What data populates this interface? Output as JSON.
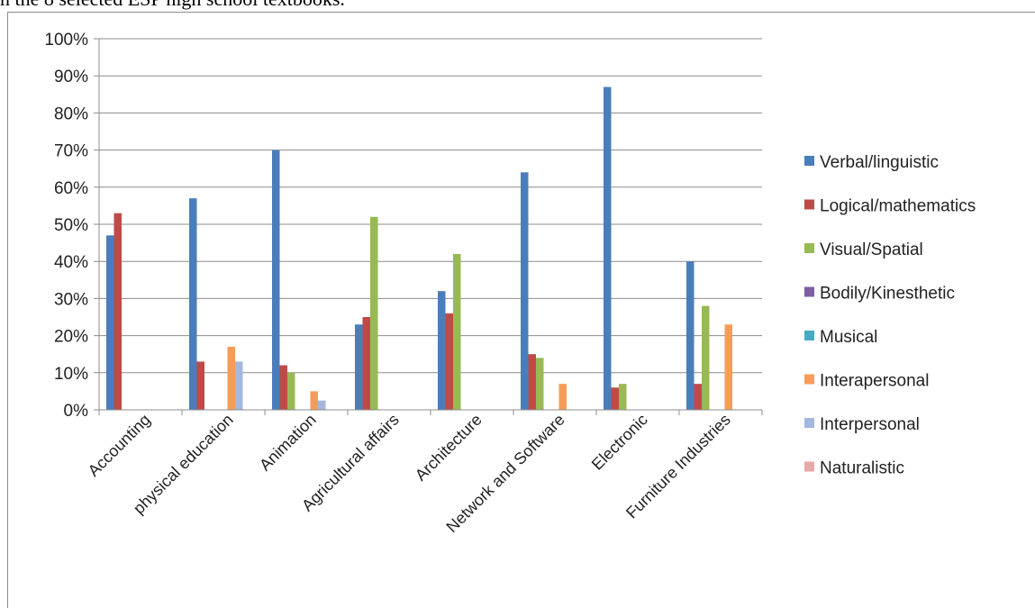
{
  "caption": "n the 8 selected ESP high school textbooks.",
  "chart_data": {
    "type": "bar",
    "categories": [
      "Accounting",
      "physical education",
      "Animation",
      "Agricultural affairs",
      "Architecture",
      "Network and Software",
      "Electronic",
      "Furniture Industries"
    ],
    "ylim": [
      0,
      100
    ],
    "yticks": [
      "0%",
      "10%",
      "20%",
      "30%",
      "40%",
      "50%",
      "60%",
      "70%",
      "80%",
      "90%",
      "100%"
    ],
    "grid": true,
    "legend_position": "right",
    "series": [
      {
        "name": "Verbal/linguistic",
        "color": "#4a7ebb",
        "values": [
          47,
          57,
          70,
          23,
          32,
          64,
          87,
          40
        ]
      },
      {
        "name": "Logical/mathematics",
        "color": "#be4b48",
        "values": [
          53,
          13,
          12,
          25,
          26,
          15,
          6,
          7
        ]
      },
      {
        "name": "Visual/Spatial",
        "color": "#98b954",
        "values": [
          0,
          0,
          10,
          52,
          42,
          14,
          7,
          28
        ]
      },
      {
        "name": "Bodily/Kinesthetic",
        "color": "#7d60a0",
        "values": [
          0,
          0,
          0,
          0,
          0,
          0,
          0,
          0
        ]
      },
      {
        "name": "Musical",
        "color": "#46aac5",
        "values": [
          0,
          0,
          0,
          0,
          0,
          0,
          0,
          0
        ]
      },
      {
        "name": "Interapersonal",
        "color": "#f59d56",
        "values": [
          0,
          17,
          5,
          0,
          0,
          7,
          0,
          23
        ]
      },
      {
        "name": "Interpersonal",
        "color": "#a5b7de",
        "values": [
          0,
          13,
          2.5,
          0,
          0,
          0,
          0,
          0
        ]
      },
      {
        "name": "Naturalistic",
        "color": "#e6a9a8",
        "values": [
          0,
          0,
          0,
          0,
          0,
          0,
          0,
          0
        ]
      }
    ]
  }
}
